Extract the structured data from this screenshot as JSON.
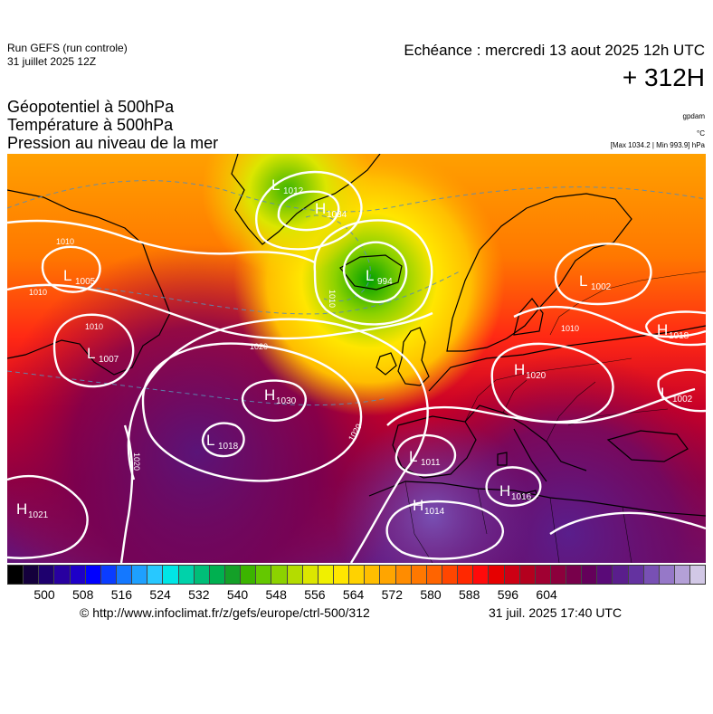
{
  "header": {
    "run_label": "Run GEFS (run controle)",
    "run_date": "31 juillet 2025 12Z",
    "echeance": "Echéance : mercredi 13 aout 2025 12h UTC",
    "lead_time": "+ 312H"
  },
  "titles": [
    "Géopotentiel à 500hPa",
    "Température à 500hPa",
    "Pression au niveau de la mer"
  ],
  "units": {
    "geopotential": "gpdam",
    "temperature": "°C",
    "pressure_range": "[Max 1034.2 | Min 993.9] hPa"
  },
  "pressure_centers": [
    {
      "type": "L",
      "value": "1012"
    },
    {
      "type": "H",
      "value": "1034"
    },
    {
      "type": "L",
      "value": "994"
    },
    {
      "type": "L",
      "value": "1005"
    },
    {
      "type": "L",
      "value": "1002"
    },
    {
      "type": "L",
      "value": "1007"
    },
    {
      "type": "H",
      "value": "1030"
    },
    {
      "type": "L",
      "value": "1018"
    },
    {
      "type": "H",
      "value": "1020"
    },
    {
      "type": "H",
      "value": "1018"
    },
    {
      "type": "L",
      "value": "1002"
    },
    {
      "type": "L",
      "value": "1011"
    },
    {
      "type": "H",
      "value": "1016"
    },
    {
      "type": "H",
      "value": "1014"
    },
    {
      "type": "H",
      "value": "1021"
    }
  ],
  "isobar_labels": [
    "1010",
    "1010",
    "1010",
    "1020",
    "1020",
    "1020",
    "1010",
    "1010"
  ],
  "colorbar": {
    "colors": [
      "#000000",
      "#14003c",
      "#1e006e",
      "#2800a0",
      "#1e00c8",
      "#0000ff",
      "#0a3cff",
      "#1478ff",
      "#1ea0ff",
      "#28c8ff",
      "#00e6e6",
      "#00d2aa",
      "#00be78",
      "#00b050",
      "#14a028",
      "#3cb400",
      "#64c800",
      "#8cd200",
      "#b4dc00",
      "#dce600",
      "#f0f000",
      "#ffe600",
      "#ffd200",
      "#ffbe00",
      "#ffa500",
      "#ff8c00",
      "#ff7800",
      "#ff6400",
      "#ff4600",
      "#ff2800",
      "#ff0a0a",
      "#e60000",
      "#cd0014",
      "#b4001e",
      "#a00032",
      "#8c003c",
      "#78004b",
      "#64005a",
      "#5a0a78",
      "#5a1e8c",
      "#6432a0",
      "#7850b4",
      "#9678c8",
      "#b4a0d7",
      "#d2c8e6"
    ],
    "ticks": [
      "500",
      "508",
      "516",
      "524",
      "532",
      "540",
      "548",
      "556",
      "564",
      "572",
      "580",
      "588",
      "596",
      "604"
    ]
  },
  "footer": {
    "copyright": "© http://www.infoclimat.fr/z/gefs/europe/ctrl-500/312",
    "timestamp": "31 juil. 2025 17:40 UTC"
  }
}
